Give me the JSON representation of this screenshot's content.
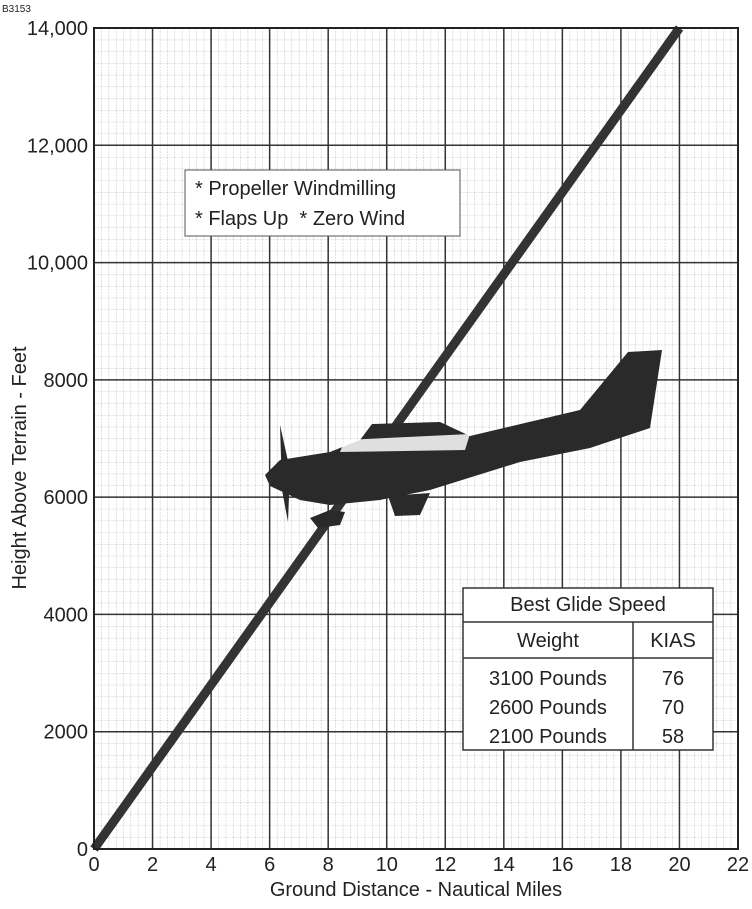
{
  "chart_data": {
    "type": "line",
    "figure_id": "B3153",
    "x_label": "Ground Distance - Nautical Miles",
    "y_label": "Height Above Terrain - Feet",
    "x": [
      0,
      20
    ],
    "series": [
      {
        "color": "#333333",
        "values": [
          0,
          14000
        ]
      }
    ],
    "xlim": [
      0,
      22
    ],
    "xticks": [
      0,
      2,
      4,
      6,
      8,
      10,
      12,
      14,
      16,
      18,
      20,
      22
    ],
    "ylim": [
      0,
      14000
    ],
    "yticks": [
      0,
      2000,
      4000,
      6000,
      8000,
      {
        "value": 10000,
        "label": "10,000"
      },
      {
        "value": 12000,
        "label": "12,000"
      },
      {
        "value": 14000,
        "label": "14,000"
      }
    ],
    "grid": true,
    "notes": [
      "* Propeller Windmilling",
      "* Flaps Up  * Zero Wind"
    ],
    "table": {
      "title": "Best Glide Speed",
      "header": [
        "Weight",
        "KIAS"
      ],
      "rows": [
        [
          "3100 Pounds",
          "76"
        ],
        [
          "2600 Pounds",
          "70"
        ],
        [
          "2100 Pounds",
          "58"
        ]
      ]
    }
  }
}
